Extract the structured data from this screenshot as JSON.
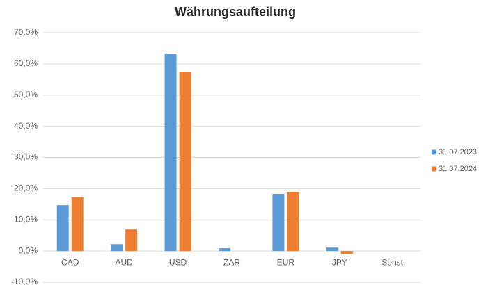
{
  "chart_data": {
    "type": "bar",
    "title": "Währungsaufteilung",
    "categories": [
      "CAD",
      "AUD",
      "USD",
      "ZAR",
      "EUR",
      "JPY",
      "Sonst."
    ],
    "series": [
      {
        "name": "31.07.2023",
        "color": "#5b9bd5",
        "values": [
          14.7,
          2.2,
          63.3,
          0.9,
          18.3,
          1.1,
          0
        ]
      },
      {
        "name": "31.07.2024",
        "color": "#ed7d31",
        "values": [
          17.4,
          6.9,
          57.3,
          0,
          19.0,
          -0.9,
          0
        ]
      }
    ],
    "ylim": [
      -10,
      70
    ],
    "yticks": [
      {
        "value": -10,
        "label": "-10,0%"
      },
      {
        "value": 0,
        "label": "0,0%"
      },
      {
        "value": 10,
        "label": "10,0%"
      },
      {
        "value": 20,
        "label": "20,0%"
      },
      {
        "value": 30,
        "label": "30,0%"
      },
      {
        "value": 40,
        "label": "40,0%"
      },
      {
        "value": 50,
        "label": "50,0%"
      },
      {
        "value": 60,
        "label": "60,0%"
      },
      {
        "value": 70,
        "label": "70,0%"
      }
    ],
    "grid": true,
    "legend": "right"
  }
}
